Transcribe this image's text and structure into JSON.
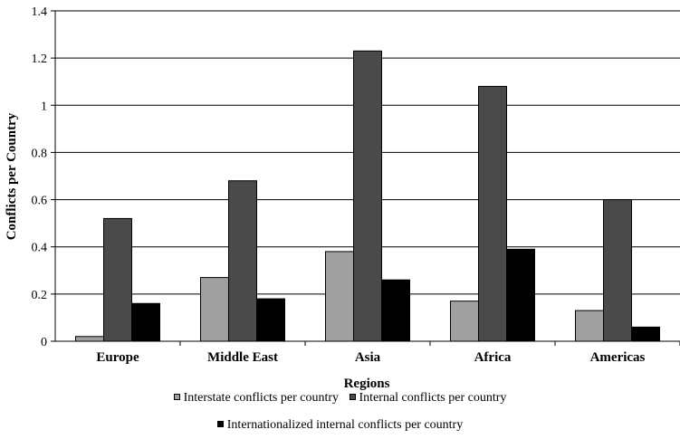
{
  "chart_data": {
    "type": "bar",
    "xlabel": "Regions",
    "ylabel": "Conflicts per Country",
    "ylim": [
      0,
      1.4
    ],
    "yticks": [
      "0",
      "0.2",
      "0.4",
      "0.6",
      "0.8",
      "1",
      "1.2",
      "1.4"
    ],
    "ytick_values": [
      0,
      0.2,
      0.4,
      0.6,
      0.8,
      1.0,
      1.2,
      1.4
    ],
    "grid": "horizontal",
    "legend_position": "bottom",
    "categories": [
      "Europe",
      "Middle East",
      "Asia",
      "Africa",
      "Americas"
    ],
    "series": [
      {
        "name": "Interstate conflicts per country",
        "color": "#a0a0a0",
        "values": [
          0.02,
          0.27,
          0.38,
          0.17,
          0.13
        ]
      },
      {
        "name": "Internal conflicts per country",
        "color": "#4a4a4a",
        "values": [
          0.52,
          0.68,
          1.23,
          1.08,
          0.6
        ]
      },
      {
        "name": "Internationalized internal conflicts per country",
        "color": "#000000",
        "values": [
          0.16,
          0.18,
          0.26,
          0.39,
          0.06
        ]
      }
    ]
  }
}
